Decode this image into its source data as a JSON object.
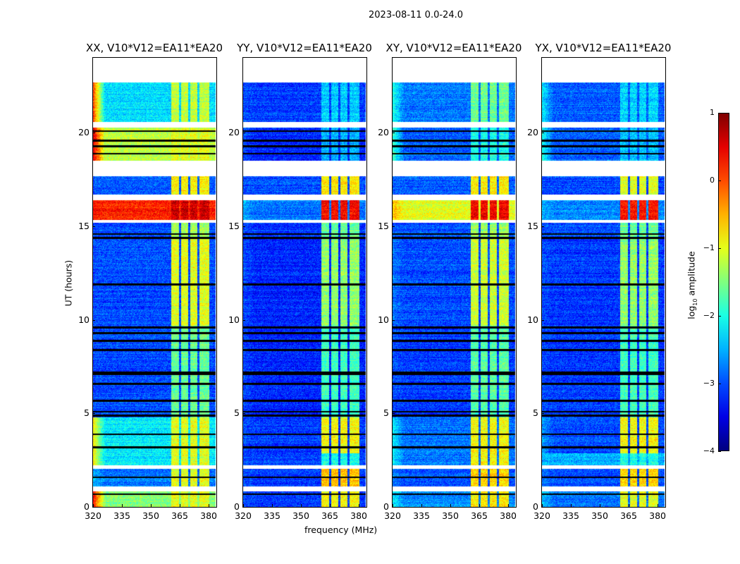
{
  "chart_data": {
    "type": "heatmap",
    "title": "2023-08-11 0.0-24.0",
    "xlabel": "frequency (MHz)",
    "ylabel": "UT (hours)",
    "xlim": [
      320,
      384
    ],
    "ylim": [
      0,
      24
    ],
    "xticks": [
      "320",
      "335",
      "350",
      "365",
      "380"
    ],
    "xtick_values": [
      320,
      335,
      350,
      365,
      380
    ],
    "yticks": [
      "0",
      "5",
      "10",
      "15",
      "20"
    ],
    "ytick_values": [
      0,
      5,
      10,
      15,
      20
    ],
    "colorbar": {
      "label": "log10 amplitude",
      "label_main": "log",
      "label_sub": "10",
      "label_rest": " amplitude",
      "vmin": -4,
      "vmax": 1,
      "ticks": [
        "−4",
        "−3",
        "−2",
        "−1",
        "0",
        "1"
      ],
      "tick_values": [
        -4,
        -3,
        -2,
        -1,
        0,
        1
      ],
      "colormap": "jet"
    },
    "no_data_ut": [
      [
        0.85,
        1.1
      ],
      [
        2.05,
        2.25
      ],
      [
        15.2,
        15.35
      ],
      [
        16.4,
        16.7
      ],
      [
        17.7,
        18.5
      ],
      [
        20.3,
        20.6
      ],
      [
        22.7,
        24
      ]
    ],
    "flagged_rows_ut": [
      0.7,
      1.6,
      3.2,
      3.9,
      4.9,
      5.1,
      5.7,
      6.6,
      7.1,
      7.2,
      8.4,
      8.9,
      9.3,
      9.6,
      11.9,
      14.4,
      14.6,
      18.9,
      19.3,
      19.6,
      20.1
    ],
    "rfi_band_mhz": [
      360.5,
      380
    ],
    "band_gaps_mhz": [
      365,
      369.7,
      374.5
    ],
    "block_fields": [
      "ut_start",
      "ut_end",
      "base_log_amp",
      "band_log_amp",
      "low_edge_log_amp"
    ],
    "panels": [
      {
        "title": "XX, V10*V12=EA11*EA20",
        "blocks": [
          [
            0,
            0.85,
            -1.5,
            -1.0,
            0.3
          ],
          [
            1.1,
            2.05,
            -2.8,
            -1.0,
            -2.5
          ],
          [
            2.25,
            4.8,
            -2.2,
            -1.0,
            -0.8
          ],
          [
            4.8,
            9.7,
            -3.0,
            -1.6,
            -3
          ],
          [
            9.7,
            14.4,
            -3.0,
            -1.0,
            -3
          ],
          [
            14.4,
            15.2,
            -3.0,
            -1.3,
            -3
          ],
          [
            15.35,
            16.4,
            0.2,
            0.6,
            0.3
          ],
          [
            16.7,
            17.7,
            -2.9,
            -0.8,
            -3
          ],
          [
            18.5,
            20.3,
            -1.2,
            -1.0,
            0.5
          ],
          [
            20.6,
            22.7,
            -2.3,
            -1.2,
            0
          ]
        ]
      },
      {
        "title": "YY, V10*V12=EA11*EA20",
        "blocks": [
          [
            0,
            0.85,
            -3.1,
            -0.9,
            -3
          ],
          [
            1.1,
            2.05,
            -3.1,
            -0.6,
            -3
          ],
          [
            2.25,
            2.9,
            -3.0,
            -2.0,
            -3
          ],
          [
            2.9,
            4.8,
            -3.1,
            -0.9,
            -3
          ],
          [
            4.8,
            9.7,
            -3.2,
            -1.8,
            -3
          ],
          [
            9.7,
            14.4,
            -3.2,
            -1.4,
            -3
          ],
          [
            14.4,
            15.2,
            -3.1,
            -1.6,
            -3
          ],
          [
            15.35,
            16.4,
            -2.8,
            0.4,
            -2.5
          ],
          [
            16.7,
            17.7,
            -3.0,
            -0.8,
            -3
          ],
          [
            18.5,
            20.3,
            -3.2,
            -2.5,
            -3
          ],
          [
            20.6,
            22.7,
            -3.1,
            -2.4,
            -3
          ]
        ]
      },
      {
        "title": "XY, V10*V12=EA11*EA20",
        "blocks": [
          [
            0,
            0.85,
            -2.7,
            -0.8,
            -2.2
          ],
          [
            1.1,
            2.05,
            -3.0,
            -0.7,
            -2.8
          ],
          [
            2.25,
            4.8,
            -2.8,
            -0.9,
            -2.2
          ],
          [
            4.8,
            9.7,
            -3.1,
            -1.7,
            -3
          ],
          [
            9.7,
            14.4,
            -3.0,
            -1.1,
            -2.8
          ],
          [
            14.4,
            15.2,
            -3.0,
            -1.4,
            -3
          ],
          [
            15.35,
            16.4,
            -1.0,
            0.4,
            -0.5
          ],
          [
            16.7,
            17.7,
            -2.9,
            -0.8,
            -3
          ],
          [
            18.5,
            20.3,
            -2.9,
            -2.0,
            -1.8
          ],
          [
            20.6,
            22.7,
            -2.8,
            -1.6,
            -2.0
          ]
        ]
      },
      {
        "title": "YX, V10*V12=EA11*EA20",
        "blocks": [
          [
            0,
            0.85,
            -2.8,
            -1.0,
            -2.4
          ],
          [
            1.1,
            2.05,
            -3.0,
            -0.7,
            -2.8
          ],
          [
            2.25,
            2.9,
            -2.5,
            -2.0,
            -2.5
          ],
          [
            2.9,
            4.8,
            -3.0,
            -0.9,
            -2.6
          ],
          [
            4.8,
            9.7,
            -3.1,
            -1.8,
            -3
          ],
          [
            9.7,
            14.4,
            -3.1,
            -1.4,
            -3
          ],
          [
            14.4,
            15.2,
            -3.0,
            -1.6,
            -3
          ],
          [
            15.35,
            16.4,
            -2.7,
            0.3,
            -2.5
          ],
          [
            16.7,
            17.7,
            -3.0,
            -1.0,
            -3
          ],
          [
            18.5,
            20.3,
            -2.9,
            -2.4,
            -2.0
          ],
          [
            20.6,
            22.7,
            -2.9,
            -2.3,
            -2.2
          ]
        ]
      }
    ]
  }
}
